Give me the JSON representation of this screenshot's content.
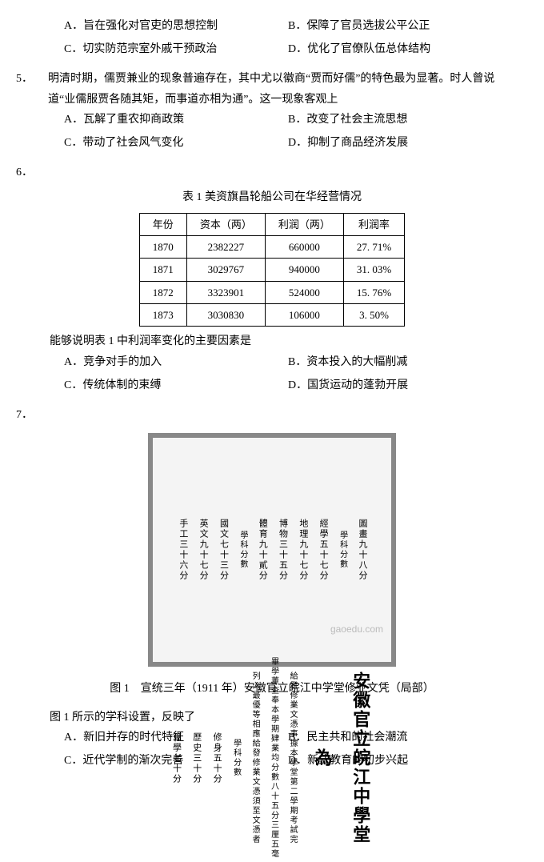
{
  "q4": {
    "options": {
      "A": "A．旨在强化对官吏的思想控制",
      "B": "B．保障了官员选拔公平公正",
      "C": "C．切实防范宗室外戚干预政治",
      "D": "D．优化了官僚队伍总体结构"
    }
  },
  "q5": {
    "num": "5．",
    "stem": "明清时期，儒贾兼业的现象普遍存在，其中尤以徽商“贾而好儒”的特色最为显著。时人曾说道“业儒服贾各随其矩，而事道亦相为通”。这一现象客观上",
    "options": {
      "A": "A．瓦解了重农抑商政策",
      "B": "B．改变了社会主流思想",
      "C": "C．带动了社会风气变化",
      "D": "D．抑制了商品经济发展"
    }
  },
  "q6": {
    "num": "6．",
    "caption": "表 1 美资旗昌轮船公司在华经营情况",
    "table": {
      "headers": [
        "年份",
        "资本（两）",
        "利润（两）",
        "利润率"
      ],
      "rows": [
        [
          "1870",
          "2382227",
          "660000",
          "27. 71%"
        ],
        [
          "1871",
          "3029767",
          "940000",
          "31. 03%"
        ],
        [
          "1872",
          "3323901",
          "524000",
          "15. 76%"
        ],
        [
          "1873",
          "3030830",
          "106000",
          "3. 50%"
        ]
      ]
    },
    "sub_stem": "能够说明表 1 中利润率变化的主要因素是",
    "options": {
      "A": "A．竞争对手的加入",
      "B": "B．资本投入的大幅削减",
      "C": "C．传统体制的束缚",
      "D": "D．国货运动的蓬勃开展"
    }
  },
  "q7": {
    "num": "7．",
    "figure": {
      "title": "安徽官立皖江中學堂",
      "wei": "為",
      "intro1": "給發修業文憑事據本學堂第二學期考試完",
      "intro2": "畢學董查奉本學期肄業均分數八十五分三厘五毫",
      "intro3": "列入最優等相應給發修業文憑須至文憑者",
      "sec1_head": "學科分數",
      "sec1_a": "修身五十分",
      "sec1_b": "歷史三十分",
      "sec1_c": "算學七十分",
      "sec1_d": "圖畫九十八分",
      "sec2_head": "學科分數",
      "sec2_a": "經學五十七分",
      "sec2_b": "地理九十七分",
      "sec2_c": "博物三十五分",
      "sec2_d": "體育九十貳分",
      "sec3_head": "學科分數",
      "sec3_a": "國文七十三分",
      "sec3_b": "英文九十七分",
      "sec3_c": "手工三十六分"
    },
    "fig_caption": "图 1　宣统三年（1911 年）安徽官立皖江中学堂修业文凭（局部）",
    "sub_stem": "图 1 所示的学科设置，反映了",
    "options": {
      "A": "A．新旧并存的时代特征",
      "B": "B．民主共和的社会潮流",
      "C": "C．近代学制的渐次完善",
      "D": "D．新式教育的初步兴起"
    },
    "watermark": "gaoedu.com"
  }
}
